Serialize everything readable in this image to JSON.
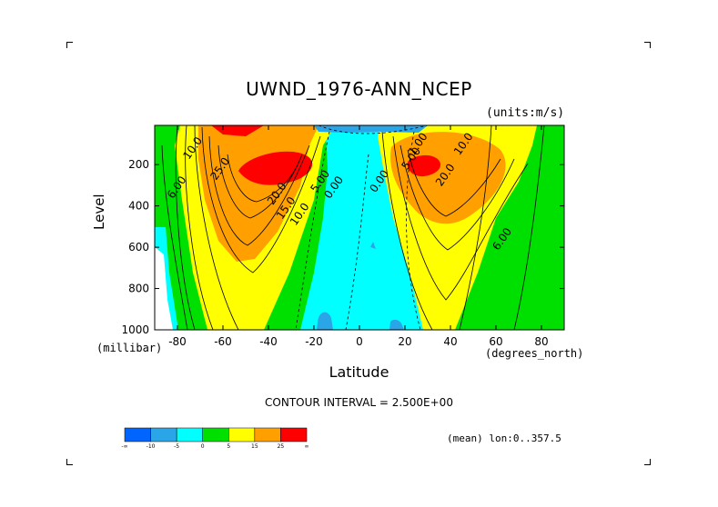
{
  "chart_data": {
    "type": "heatmap",
    "title": "UWND_1976-ANN_NCEP",
    "units": "(units:m/s)",
    "xlabel": "Latitude",
    "x_unit": "(degrees_north)",
    "ylabel": "Level",
    "y_unit": "(millibar)",
    "xlim": [
      -90,
      90
    ],
    "ylim": [
      1000,
      10
    ],
    "x_ticks": [
      "-80",
      "-60",
      "-40",
      "-20",
      "0",
      "20",
      "40",
      "60",
      "80"
    ],
    "x_tick_values": [
      -80,
      -60,
      -40,
      -20,
      0,
      20,
      40,
      60,
      80
    ],
    "y_ticks": [
      "200",
      "400",
      "600",
      "800",
      "1000"
    ],
    "y_tick_values": [
      200,
      400,
      600,
      800,
      1000
    ],
    "contour_interval_text": "CONTOUR INTERVAL = 2.500E+00",
    "mean_text": "(mean) lon:0..357.5",
    "contour_labels": [
      {
        "text": "10.0",
        "lat": -72,
        "lev": 130
      },
      {
        "text": "6.00",
        "lat": -79,
        "lev": 320
      },
      {
        "text": "25.0",
        "lat": -60,
        "lev": 230
      },
      {
        "text": "20.0",
        "lat": -35,
        "lev": 350
      },
      {
        "text": "15.0",
        "lat": -31,
        "lev": 420
      },
      {
        "text": "10.0",
        "lat": -25,
        "lev": 450
      },
      {
        "text": "5.00",
        "lat": -16,
        "lev": 290
      },
      {
        "text": "0.00",
        "lat": -10,
        "lev": 320
      },
      {
        "text": "0.00",
        "lat": 10,
        "lev": 290
      },
      {
        "text": "5.00",
        "lat": 24,
        "lev": 180
      },
      {
        "text": "20.0",
        "lat": 39,
        "lev": 260
      },
      {
        "text": "10.0",
        "lat": 47,
        "lev": 110
      },
      {
        "text": "1.00",
        "lat": 27,
        "lev": 110
      },
      {
        "text": "6.00",
        "lat": 64,
        "lev": 570
      }
    ],
    "colorbar": {
      "colors": [
        "#0064ff",
        "#2aa5e8",
        "#00ffff",
        "#00e000",
        "#ffff00",
        "#ff9f00",
        "#ff0000"
      ],
      "labels": [
        "-∞",
        "-10",
        "-5",
        "0",
        "5",
        "15",
        "25",
        "∞"
      ]
    }
  },
  "palette": {
    "neg_blue": "#0064ff",
    "light_blue": "#2aa5e8",
    "cyan": "#00ffff",
    "green": "#00e000",
    "yellow": "#ffff00",
    "orange": "#ff9f00",
    "red": "#ff0000"
  }
}
